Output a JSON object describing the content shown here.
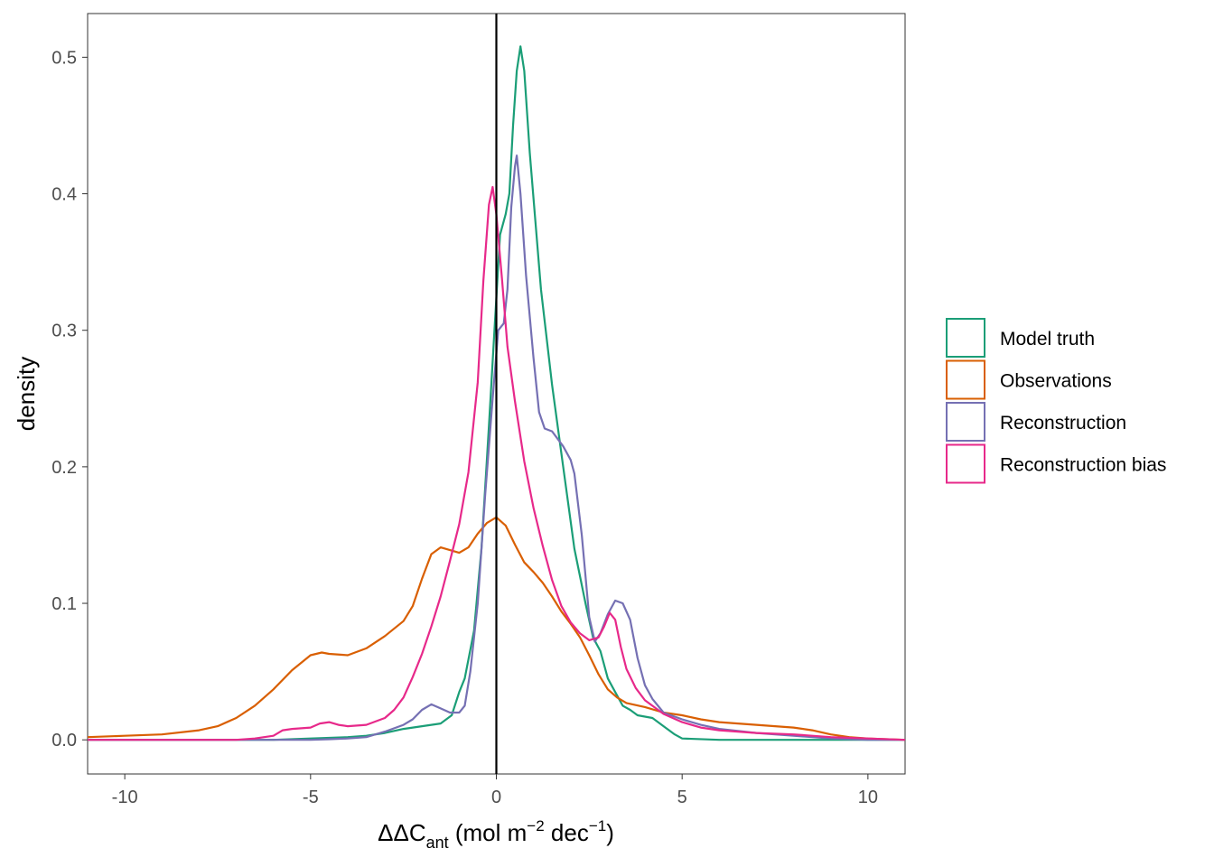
{
  "chart_data": {
    "type": "line",
    "title": "",
    "xlabel": {
      "prefix": "ΔΔC",
      "sub": "ant",
      "unit_open": " (mol m",
      "sup1": "−2",
      "unit_mid": " dec",
      "sup2": "−1",
      "unit_close": ")"
    },
    "ylabel": "density",
    "xlim": [
      -11,
      11
    ],
    "ylim": [
      -0.025,
      0.532
    ],
    "x_ticks": [
      -10,
      -5,
      0,
      5,
      10
    ],
    "x_tick_labels": [
      "-10",
      "-5",
      "0",
      "5",
      "10"
    ],
    "y_ticks": [
      0.0,
      0.1,
      0.2,
      0.3,
      0.4,
      0.5
    ],
    "y_tick_labels": [
      "0.0",
      "0.1",
      "0.2",
      "0.3",
      "0.4",
      "0.5"
    ],
    "grid": false,
    "vline_x": 0,
    "legend_position": "right",
    "series": [
      {
        "name": "Model truth",
        "color": "#1b9e77",
        "points": [
          [
            -11,
            0
          ],
          [
            -8,
            0
          ],
          [
            -6,
            0
          ],
          [
            -5,
            0.001
          ],
          [
            -4,
            0.002
          ],
          [
            -3.5,
            0.003
          ],
          [
            -3,
            0.005
          ],
          [
            -2.5,
            0.008
          ],
          [
            -2,
            0.01
          ],
          [
            -1.5,
            0.012
          ],
          [
            -1.2,
            0.018
          ],
          [
            -1,
            0.035
          ],
          [
            -0.85,
            0.045
          ],
          [
            -0.6,
            0.08
          ],
          [
            -0.4,
            0.14
          ],
          [
            -0.2,
            0.23
          ],
          [
            -0.05,
            0.3
          ],
          [
            0.1,
            0.37
          ],
          [
            0.25,
            0.385
          ],
          [
            0.35,
            0.4
          ],
          [
            0.45,
            0.45
          ],
          [
            0.55,
            0.49
          ],
          [
            0.65,
            0.508
          ],
          [
            0.75,
            0.49
          ],
          [
            0.9,
            0.43
          ],
          [
            1.05,
            0.38
          ],
          [
            1.2,
            0.33
          ],
          [
            1.5,
            0.26
          ],
          [
            1.8,
            0.2
          ],
          [
            2.1,
            0.14
          ],
          [
            2.4,
            0.1
          ],
          [
            2.6,
            0.075
          ],
          [
            2.8,
            0.065
          ],
          [
            3.0,
            0.045
          ],
          [
            3.2,
            0.035
          ],
          [
            3.4,
            0.025
          ],
          [
            3.6,
            0.022
          ],
          [
            3.8,
            0.018
          ],
          [
            4.0,
            0.017
          ],
          [
            4.2,
            0.016
          ],
          [
            4.5,
            0.01
          ],
          [
            4.8,
            0.004
          ],
          [
            5,
            0.001
          ],
          [
            6,
            0
          ],
          [
            8,
            0
          ],
          [
            11,
            0
          ]
        ]
      },
      {
        "name": "Observations",
        "color": "#d95f02",
        "points": [
          [
            -11,
            0.002
          ],
          [
            -10,
            0.003
          ],
          [
            -9,
            0.004
          ],
          [
            -8,
            0.007
          ],
          [
            -7.5,
            0.01
          ],
          [
            -7,
            0.016
          ],
          [
            -6.5,
            0.025
          ],
          [
            -6,
            0.037
          ],
          [
            -5.5,
            0.051
          ],
          [
            -5,
            0.062
          ],
          [
            -4.7,
            0.064
          ],
          [
            -4.5,
            0.063
          ],
          [
            -4,
            0.062
          ],
          [
            -3.5,
            0.067
          ],
          [
            -3,
            0.076
          ],
          [
            -2.5,
            0.087
          ],
          [
            -2.25,
            0.098
          ],
          [
            -2,
            0.118
          ],
          [
            -1.75,
            0.136
          ],
          [
            -1.5,
            0.141
          ],
          [
            -1.25,
            0.139
          ],
          [
            -1,
            0.137
          ],
          [
            -0.75,
            0.141
          ],
          [
            -0.5,
            0.151
          ],
          [
            -0.25,
            0.159
          ],
          [
            0,
            0.163
          ],
          [
            0.25,
            0.157
          ],
          [
            0.5,
            0.143
          ],
          [
            0.75,
            0.13
          ],
          [
            1,
            0.123
          ],
          [
            1.25,
            0.115
          ],
          [
            1.5,
            0.105
          ],
          [
            1.75,
            0.094
          ],
          [
            2,
            0.085
          ],
          [
            2.25,
            0.075
          ],
          [
            2.5,
            0.062
          ],
          [
            2.75,
            0.048
          ],
          [
            3,
            0.037
          ],
          [
            3.25,
            0.031
          ],
          [
            3.5,
            0.027
          ],
          [
            4,
            0.024
          ],
          [
            4.5,
            0.02
          ],
          [
            5,
            0.018
          ],
          [
            5.5,
            0.015
          ],
          [
            6,
            0.013
          ],
          [
            6.5,
            0.012
          ],
          [
            7,
            0.011
          ],
          [
            7.5,
            0.01
          ],
          [
            8,
            0.009
          ],
          [
            8.5,
            0.007
          ],
          [
            9,
            0.004
          ],
          [
            9.5,
            0.002
          ],
          [
            10,
            0.001
          ],
          [
            11,
            0
          ]
        ]
      },
      {
        "name": "Reconstruction",
        "color": "#7570b3",
        "points": [
          [
            -11,
            0
          ],
          [
            -8,
            0
          ],
          [
            -6,
            0
          ],
          [
            -5,
            0
          ],
          [
            -4.5,
            0.0005
          ],
          [
            -4,
            0.001
          ],
          [
            -3.5,
            0.002
          ],
          [
            -3,
            0.006
          ],
          [
            -2.5,
            0.011
          ],
          [
            -2.25,
            0.015
          ],
          [
            -2,
            0.022
          ],
          [
            -1.75,
            0.026
          ],
          [
            -1.5,
            0.023
          ],
          [
            -1.25,
            0.02
          ],
          [
            -1,
            0.02
          ],
          [
            -0.85,
            0.025
          ],
          [
            -0.7,
            0.05
          ],
          [
            -0.5,
            0.1
          ],
          [
            -0.3,
            0.18
          ],
          [
            -0.1,
            0.25
          ],
          [
            0.05,
            0.3
          ],
          [
            0.2,
            0.305
          ],
          [
            0.3,
            0.33
          ],
          [
            0.4,
            0.39
          ],
          [
            0.5,
            0.42
          ],
          [
            0.55,
            0.428
          ],
          [
            0.65,
            0.4
          ],
          [
            0.8,
            0.34
          ],
          [
            1,
            0.28
          ],
          [
            1.15,
            0.24
          ],
          [
            1.3,
            0.228
          ],
          [
            1.5,
            0.226
          ],
          [
            1.8,
            0.215
          ],
          [
            2.0,
            0.205
          ],
          [
            2.1,
            0.195
          ],
          [
            2.3,
            0.15
          ],
          [
            2.5,
            0.09
          ],
          [
            2.65,
            0.072
          ],
          [
            2.8,
            0.078
          ],
          [
            3.0,
            0.092
          ],
          [
            3.2,
            0.102
          ],
          [
            3.4,
            0.1
          ],
          [
            3.6,
            0.088
          ],
          [
            3.8,
            0.06
          ],
          [
            4.0,
            0.04
          ],
          [
            4.2,
            0.03
          ],
          [
            4.5,
            0.02
          ],
          [
            5,
            0.015
          ],
          [
            5.5,
            0.011
          ],
          [
            6,
            0.008
          ],
          [
            7,
            0.005
          ],
          [
            8,
            0.003
          ],
          [
            9,
            0.001
          ],
          [
            10,
            0
          ],
          [
            11,
            0
          ]
        ]
      },
      {
        "name": "Reconstruction bias",
        "color": "#e7298a",
        "points": [
          [
            -11,
            0
          ],
          [
            -9,
            0
          ],
          [
            -7,
            0
          ],
          [
            -6.5,
            0.001
          ],
          [
            -6,
            0.003
          ],
          [
            -5.75,
            0.007
          ],
          [
            -5.5,
            0.008
          ],
          [
            -5,
            0.009
          ],
          [
            -4.75,
            0.012
          ],
          [
            -4.5,
            0.013
          ],
          [
            -4.25,
            0.011
          ],
          [
            -4,
            0.01
          ],
          [
            -3.5,
            0.011
          ],
          [
            -3,
            0.016
          ],
          [
            -2.75,
            0.022
          ],
          [
            -2.5,
            0.031
          ],
          [
            -2.25,
            0.046
          ],
          [
            -2,
            0.063
          ],
          [
            -1.75,
            0.083
          ],
          [
            -1.5,
            0.105
          ],
          [
            -1.25,
            0.131
          ],
          [
            -1,
            0.158
          ],
          [
            -0.75,
            0.196
          ],
          [
            -0.5,
            0.262
          ],
          [
            -0.35,
            0.336
          ],
          [
            -0.2,
            0.392
          ],
          [
            -0.1,
            0.405
          ],
          [
            0,
            0.385
          ],
          [
            0.15,
            0.338
          ],
          [
            0.3,
            0.288
          ],
          [
            0.5,
            0.248
          ],
          [
            0.75,
            0.204
          ],
          [
            1,
            0.17
          ],
          [
            1.25,
            0.142
          ],
          [
            1.5,
            0.117
          ],
          [
            1.75,
            0.098
          ],
          [
            2,
            0.086
          ],
          [
            2.25,
            0.078
          ],
          [
            2.5,
            0.073
          ],
          [
            2.75,
            0.075
          ],
          [
            2.9,
            0.083
          ],
          [
            3.05,
            0.093
          ],
          [
            3.2,
            0.088
          ],
          [
            3.35,
            0.068
          ],
          [
            3.5,
            0.052
          ],
          [
            3.75,
            0.038
          ],
          [
            4,
            0.029
          ],
          [
            4.5,
            0.019
          ],
          [
            5,
            0.013
          ],
          [
            5.5,
            0.009
          ],
          [
            6,
            0.007
          ],
          [
            7,
            0.005
          ],
          [
            8,
            0.004
          ],
          [
            9,
            0.002
          ],
          [
            10,
            0.001
          ],
          [
            11,
            0
          ]
        ]
      }
    ]
  }
}
